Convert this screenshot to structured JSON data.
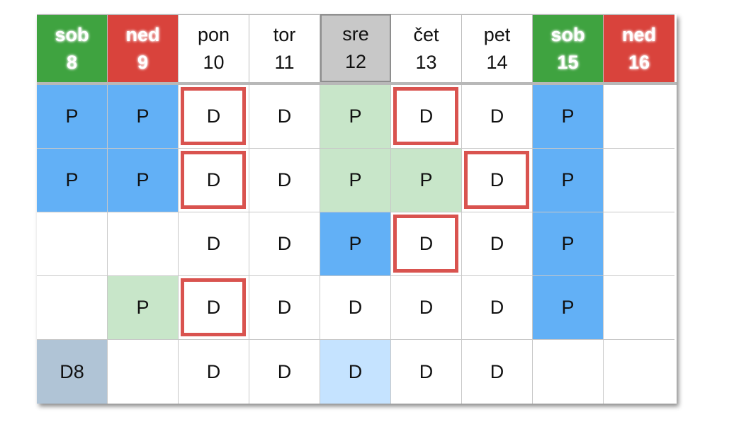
{
  "header": [
    {
      "day": "sob",
      "date": "8",
      "kind": "sat"
    },
    {
      "day": "ned",
      "date": "9",
      "kind": "sun"
    },
    {
      "day": "pon",
      "date": "10",
      "kind": "weekday"
    },
    {
      "day": "tor",
      "date": "11",
      "kind": "weekday"
    },
    {
      "day": "sre",
      "date": "12",
      "kind": "today"
    },
    {
      "day": "čet",
      "date": "13",
      "kind": "weekday"
    },
    {
      "day": "pet",
      "date": "14",
      "kind": "weekday"
    },
    {
      "day": "sob",
      "date": "15",
      "kind": "sat"
    },
    {
      "day": "ned",
      "date": "16",
      "kind": "sun"
    }
  ],
  "rows": [
    [
      {
        "text": "P",
        "style": "blue"
      },
      {
        "text": "P",
        "style": "blue"
      },
      {
        "text": "D",
        "style": "boxed"
      },
      {
        "text": "D",
        "style": ""
      },
      {
        "text": "P",
        "style": "green"
      },
      {
        "text": "D",
        "style": "boxed"
      },
      {
        "text": "D",
        "style": ""
      },
      {
        "text": "P",
        "style": "blue"
      },
      {
        "text": "",
        "style": ""
      }
    ],
    [
      {
        "text": "P",
        "style": "blue"
      },
      {
        "text": "P",
        "style": "blue"
      },
      {
        "text": "D",
        "style": "boxed"
      },
      {
        "text": "D",
        "style": ""
      },
      {
        "text": "P",
        "style": "green"
      },
      {
        "text": "P",
        "style": "green"
      },
      {
        "text": "D",
        "style": "boxed"
      },
      {
        "text": "P",
        "style": "blue"
      },
      {
        "text": "",
        "style": ""
      }
    ],
    [
      {
        "text": "",
        "style": ""
      },
      {
        "text": "",
        "style": ""
      },
      {
        "text": "D",
        "style": ""
      },
      {
        "text": "D",
        "style": ""
      },
      {
        "text": "P",
        "style": "blue"
      },
      {
        "text": "D",
        "style": "boxed"
      },
      {
        "text": "D",
        "style": ""
      },
      {
        "text": "P",
        "style": "blue"
      },
      {
        "text": "",
        "style": ""
      }
    ],
    [
      {
        "text": "",
        "style": ""
      },
      {
        "text": "P",
        "style": "green"
      },
      {
        "text": "D",
        "style": "boxed"
      },
      {
        "text": "D",
        "style": ""
      },
      {
        "text": "D",
        "style": ""
      },
      {
        "text": "D",
        "style": ""
      },
      {
        "text": "D",
        "style": ""
      },
      {
        "text": "P",
        "style": "blue"
      },
      {
        "text": "",
        "style": ""
      }
    ],
    [
      {
        "text": "D8",
        "style": "gray"
      },
      {
        "text": "",
        "style": ""
      },
      {
        "text": "D",
        "style": ""
      },
      {
        "text": "D",
        "style": ""
      },
      {
        "text": "D",
        "style": "lightblue"
      },
      {
        "text": "D",
        "style": ""
      },
      {
        "text": "D",
        "style": ""
      },
      {
        "text": "",
        "style": ""
      },
      {
        "text": "",
        "style": ""
      }
    ]
  ],
  "colors": {
    "saturday": "#3fa340",
    "sunday": "#d9433c",
    "today": "#c8c8c8",
    "shift_blue": "#62b0f6",
    "shift_green": "#c8e6c9",
    "highlight_border": "#d9534f"
  }
}
